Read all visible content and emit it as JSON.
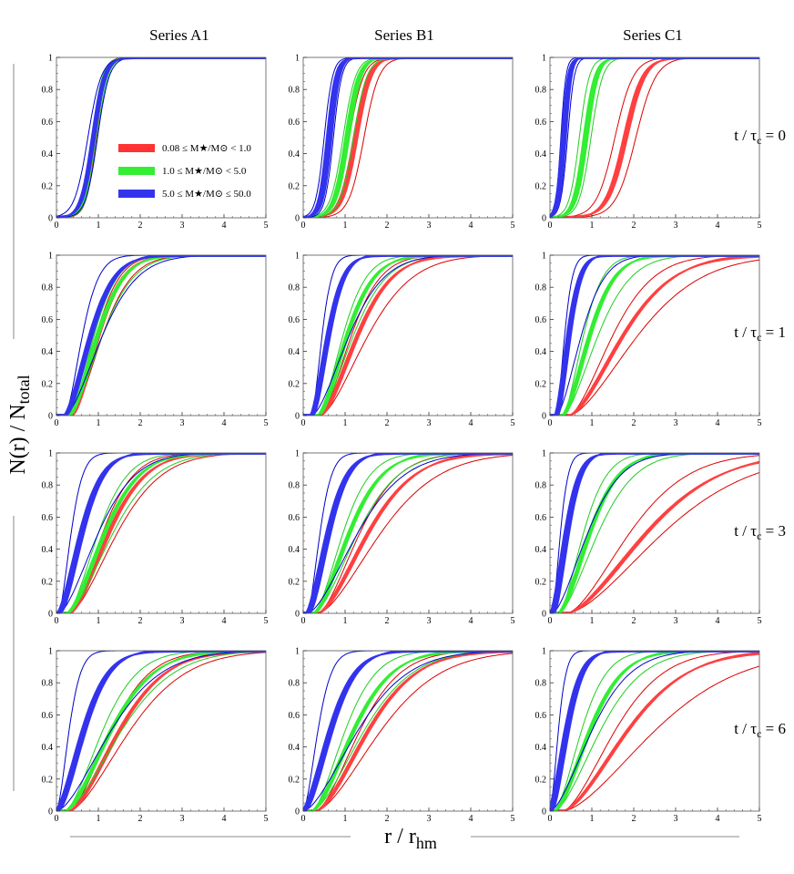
{
  "figure": {
    "column_titles": [
      "Series A1",
      "Series B1",
      "Series C1"
    ],
    "row_labels": [
      "t / τ_c = 0",
      "t / τ_c = 1",
      "t / τ_c = 3",
      "t / τ_c = 6"
    ],
    "row_label_parts": [
      {
        "prefix": "t / τ",
        "sub": "c",
        "suffix": " = 0"
      },
      {
        "prefix": "t / τ",
        "sub": "c",
        "suffix": " = 1"
      },
      {
        "prefix": "t / τ",
        "sub": "c",
        "suffix": " = 3"
      },
      {
        "prefix": "t / τ",
        "sub": "c",
        "suffix": " = 6"
      }
    ],
    "ylabel": "N(r) / N_total",
    "ylabel_parts": {
      "main": "N(r) / N",
      "sub": "total"
    },
    "xlabel": "r / r_hm",
    "xlabel_parts": {
      "main": "r / r",
      "sub": "hm"
    }
  },
  "legend": [
    {
      "label": "0.08 ≤ M★/M⊙ < 1.0",
      "color": "#ff3333"
    },
    {
      "label": "1.0 ≤ M★/M⊙ < 5.0",
      "color": "#33ee33"
    },
    {
      "label": "5.0 ≤ M★/M⊙ ≤ 50.0",
      "color": "#3333ee"
    }
  ],
  "colors": {
    "red_band": "#ff4040",
    "red_line": "#dd0000",
    "green_band": "#33ee33",
    "green_line": "#22cc22",
    "blue_band": "#3333ee",
    "blue_line": "#0000cc"
  },
  "chart_data": {
    "type": "line",
    "description": "Cumulative radial distribution N(r)/N_total vs r/r_hm; each series shows a median band (thick) and envelope lines (thin). Values read approximately; each curve summarized by the radius where it reaches half its maximum (r50), a growth scale (s), its plateau (max) and start radius (r0).",
    "xlim": [
      0,
      5
    ],
    "ylim": [
      0,
      1
    ],
    "xticks": [
      0,
      1,
      2,
      3,
      4,
      5
    ],
    "yticks": [
      0,
      0.2,
      0.4,
      0.6,
      0.8,
      1
    ],
    "panels": [
      {
        "row": 0,
        "col": 0,
        "series": {
          "red": {
            "kind": "sigmoid",
            "band": {
              "r50": 0.9,
              "s": 0.12,
              "w": 0.03
            },
            "env": [
              {
                "r50": 0.87,
                "s": 0.12
              },
              {
                "r50": 0.95,
                "s": 0.12
              }
            ]
          },
          "green": {
            "kind": "sigmoid",
            "band": {
              "r50": 0.9,
              "s": 0.13,
              "w": 0.03
            },
            "env": [
              {
                "r50": 0.84,
                "s": 0.13
              },
              {
                "r50": 0.97,
                "s": 0.13
              }
            ]
          },
          "blue": {
            "kind": "sigmoid",
            "band": {
              "r50": 0.88,
              "s": 0.14,
              "w": 0.04
            },
            "env": [
              {
                "r50": 0.75,
                "s": 0.16
              },
              {
                "r50": 0.98,
                "s": 0.14
              }
            ]
          }
        }
      },
      {
        "row": 0,
        "col": 1,
        "series": {
          "red": {
            "kind": "sigmoid",
            "band": {
              "r50": 1.25,
              "s": 0.17,
              "w": 0.05
            },
            "env": [
              {
                "r50": 1.1,
                "s": 0.17
              },
              {
                "r50": 1.45,
                "s": 0.18
              }
            ]
          },
          "green": {
            "kind": "sigmoid",
            "band": {
              "r50": 1.05,
              "s": 0.15,
              "w": 0.05
            },
            "env": [
              {
                "r50": 0.95,
                "s": 0.15
              },
              {
                "r50": 1.2,
                "s": 0.16
              }
            ]
          },
          "blue": {
            "kind": "sigmoid",
            "band": {
              "r50": 0.62,
              "s": 0.1,
              "w": 0.06
            },
            "env": [
              {
                "r50": 0.5,
                "s": 0.1
              },
              {
                "r50": 0.72,
                "s": 0.1
              }
            ]
          }
        }
      },
      {
        "row": 0,
        "col": 2,
        "series": {
          "red": {
            "kind": "sigmoid",
            "band": {
              "r50": 1.8,
              "s": 0.22,
              "w": 0.05
            },
            "env": [
              {
                "r50": 1.55,
                "s": 0.22
              },
              {
                "r50": 2.05,
                "s": 0.24
              }
            ]
          },
          "green": {
            "kind": "sigmoid",
            "band": {
              "r50": 0.85,
              "s": 0.13,
              "w": 0.05
            },
            "env": [
              {
                "r50": 0.7,
                "s": 0.12
              },
              {
                "r50": 0.98,
                "s": 0.14
              }
            ]
          },
          "blue": {
            "kind": "sigmoid",
            "band": {
              "r50": 0.33,
              "s": 0.07,
              "w": 0.05
            },
            "env": [
              {
                "r50": 0.26,
                "s": 0.06
              },
              {
                "r50": 0.42,
                "s": 0.08
              }
            ]
          }
        }
      },
      {
        "row": 1,
        "col": 0,
        "series": {
          "red": {
            "kind": "sat",
            "r0": 0.35,
            "band": {
              "r50": 1.0,
              "s": 0.35,
              "w": 0.04
            },
            "env": [
              {
                "r50": 0.95,
                "s": 0.35
              },
              {
                "r50": 1.1,
                "s": 0.4
              }
            ]
          },
          "green": {
            "kind": "sat",
            "r0": 0.3,
            "band": {
              "r50": 0.98,
              "s": 0.35,
              "w": 0.04
            },
            "env": [
              {
                "r50": 0.9,
                "s": 0.35
              },
              {
                "r50": 1.1,
                "s": 0.38
              }
            ]
          },
          "blue": {
            "kind": "sat",
            "r0": 0.2,
            "band": {
              "r50": 0.82,
              "s": 0.3,
              "w": 0.05
            },
            "env": [
              {
                "r50": 0.62,
                "s": 0.25
              },
              {
                "r50": 1.1,
                "s": 0.4
              }
            ]
          }
        }
      },
      {
        "row": 1,
        "col": 1,
        "series": {
          "red": {
            "kind": "sat",
            "r0": 0.4,
            "band": {
              "r50": 1.3,
              "s": 0.45,
              "w": 0.04
            },
            "env": [
              {
                "r50": 1.15,
                "s": 0.42
              },
              {
                "r50": 1.55,
                "s": 0.5
              }
            ]
          },
          "green": {
            "kind": "sat",
            "r0": 0.35,
            "band": {
              "r50": 1.05,
              "s": 0.35,
              "w": 0.04
            },
            "env": [
              {
                "r50": 0.95,
                "s": 0.3
              },
              {
                "r50": 1.2,
                "s": 0.4
              }
            ]
          },
          "blue": {
            "kind": "sat",
            "r0": 0.2,
            "band": {
              "r50": 0.6,
              "s": 0.18,
              "w": 0.05
            },
            "env": [
              {
                "r50": 0.45,
                "s": 0.15
              },
              {
                "r50": 1.1,
                "s": 0.5
              }
            ]
          }
        }
      },
      {
        "row": 1,
        "col": 2,
        "series": {
          "red": {
            "kind": "sat",
            "r0": 0.45,
            "band": {
              "r50": 1.75,
              "s": 0.7,
              "w": 0.04
            },
            "env": [
              {
                "r50": 1.5,
                "s": 0.6
              },
              {
                "r50": 2.1,
                "s": 0.8
              }
            ]
          },
          "green": {
            "kind": "sat",
            "r0": 0.3,
            "band": {
              "r50": 0.95,
              "s": 0.35,
              "w": 0.04
            },
            "env": [
              {
                "r50": 0.8,
                "s": 0.3
              },
              {
                "r50": 1.15,
                "s": 0.45
              }
            ]
          },
          "blue": {
            "kind": "sat",
            "r0": 0.15,
            "band": {
              "r50": 0.45,
              "s": 0.12,
              "w": 0.05
            },
            "env": [
              {
                "r50": 0.35,
                "s": 0.1
              },
              {
                "r50": 0.75,
                "s": 0.3
              }
            ]
          }
        }
      },
      {
        "row": 2,
        "col": 0,
        "series": {
          "red": {
            "kind": "sat",
            "r0": 0.3,
            "band": {
              "r50": 1.25,
              "s": 0.75,
              "w": 0.04
            },
            "env": [
              {
                "r50": 1.1,
                "s": 0.7
              },
              {
                "r50": 1.45,
                "s": 0.8
              }
            ]
          },
          "green": {
            "kind": "sat",
            "r0": 0.25,
            "band": {
              "r50": 1.15,
              "s": 0.65,
              "w": 0.04
            },
            "env": [
              {
                "r50": 1.0,
                "s": 0.55
              },
              {
                "r50": 1.35,
                "s": 0.75
              }
            ]
          },
          "blue": {
            "kind": "sat",
            "r0": 0.05,
            "band": {
              "r50": 0.6,
              "s": 0.3,
              "w": 0.06
            },
            "env": [
              {
                "r50": 0.35,
                "s": 0.2
              },
              {
                "r50": 1.0,
                "s": 0.6
              }
            ]
          }
        }
      },
      {
        "row": 2,
        "col": 1,
        "series": {
          "red": {
            "kind": "sat",
            "r0": 0.35,
            "band": {
              "r50": 1.55,
              "s": 0.9,
              "w": 0.04
            },
            "env": [
              {
                "r50": 1.35,
                "s": 0.8
              },
              {
                "r50": 1.85,
                "s": 1.0
              }
            ]
          },
          "green": {
            "kind": "sat",
            "r0": 0.25,
            "band": {
              "r50": 1.1,
              "s": 0.6,
              "w": 0.04
            },
            "env": [
              {
                "r50": 0.95,
                "s": 0.5
              },
              {
                "r50": 1.3,
                "s": 0.7
              }
            ]
          },
          "blue": {
            "kind": "sat",
            "r0": 0.1,
            "band": {
              "r50": 0.6,
              "s": 0.25,
              "w": 0.06
            },
            "env": [
              {
                "r50": 0.4,
                "s": 0.2
              },
              {
                "r50": 1.3,
                "s": 0.8
              }
            ]
          }
        }
      },
      {
        "row": 2,
        "col": 2,
        "series": {
          "red": {
            "kind": "sat",
            "r0": 0.4,
            "band": {
              "r50": 2.3,
              "s": 1.4,
              "w": 0.05
            },
            "env": [
              {
                "r50": 1.9,
                "s": 1.2
              },
              {
                "r50": 2.7,
                "s": 1.6
              }
            ]
          },
          "green": {
            "kind": "sat",
            "r0": 0.2,
            "band": {
              "r50": 0.95,
              "s": 0.5,
              "w": 0.04
            },
            "env": [
              {
                "r50": 0.8,
                "s": 0.4
              },
              {
                "r50": 1.15,
                "s": 0.6
              }
            ]
          },
          "blue": {
            "kind": "sat",
            "r0": 0.05,
            "band": {
              "r50": 0.4,
              "s": 0.2,
              "w": 0.06
            },
            "env": [
              {
                "r50": 0.25,
                "s": 0.1
              },
              {
                "r50": 0.9,
                "s": 0.7
              }
            ]
          }
        }
      },
      {
        "row": 3,
        "col": 0,
        "series": {
          "red": {
            "kind": "sat",
            "r0": 0.3,
            "band": {
              "r50": 1.5,
              "s": 1.1,
              "w": 0.04
            },
            "env": [
              {
                "r50": 1.3,
                "s": 0.9
              },
              {
                "r50": 1.75,
                "s": 1.2
              }
            ]
          },
          "green": {
            "kind": "sat",
            "r0": 0.2,
            "band": {
              "r50": 1.3,
              "s": 0.9,
              "w": 0.04
            },
            "env": [
              {
                "r50": 1.1,
                "s": 0.7
              },
              {
                "r50": 1.55,
                "s": 1.1
              }
            ]
          },
          "blue": {
            "kind": "sat",
            "r0": 0.0,
            "band": {
              "r50": 0.65,
              "s": 0.45,
              "w": 0.06
            },
            "env": [
              {
                "r50": 0.3,
                "s": 0.15
              },
              {
                "r50": 1.3,
                "s": 0.9
              }
            ]
          }
        }
      },
      {
        "row": 3,
        "col": 1,
        "series": {
          "red": {
            "kind": "sat",
            "r0": 0.3,
            "band": {
              "r50": 1.55,
              "s": 1.1,
              "w": 0.04
            },
            "env": [
              {
                "r50": 1.35,
                "s": 0.9
              },
              {
                "r50": 1.85,
                "s": 1.2
              }
            ]
          },
          "green": {
            "kind": "sat",
            "r0": 0.2,
            "band": {
              "r50": 1.2,
              "s": 0.9,
              "w": 0.04
            },
            "env": [
              {
                "r50": 1.0,
                "s": 0.7
              },
              {
                "r50": 1.45,
                "s": 1.0
              }
            ]
          },
          "blue": {
            "kind": "sat",
            "r0": 0.0,
            "band": {
              "r50": 0.65,
              "s": 0.45,
              "w": 0.06
            },
            "env": [
              {
                "r50": 0.35,
                "s": 0.2
              },
              {
                "r50": 1.3,
                "s": 1.0
              }
            ]
          }
        }
      },
      {
        "row": 3,
        "col": 2,
        "series": {
          "red": {
            "kind": "sat",
            "r0": 0.3,
            "band": {
              "r50": 1.85,
              "s": 1.5,
              "w": 0.04
            },
            "env": [
              {
                "r50": 1.55,
                "s": 1.3
              },
              {
                "r50": 2.5,
                "s": 2.0
              }
            ]
          },
          "green": {
            "kind": "sat",
            "r0": 0.1,
            "band": {
              "r50": 0.95,
              "s": 0.8,
              "w": 0.04
            },
            "env": [
              {
                "r50": 0.75,
                "s": 0.6
              },
              {
                "r50": 1.2,
                "s": 0.9
              }
            ]
          },
          "blue": {
            "kind": "sat",
            "r0": 0.0,
            "band": {
              "r50": 0.4,
              "s": 0.3,
              "w": 0.06
            },
            "env": [
              {
                "r50": 0.2,
                "s": 0.1
              },
              {
                "r50": 1.0,
                "s": 0.9
              }
            ]
          }
        }
      }
    ]
  }
}
